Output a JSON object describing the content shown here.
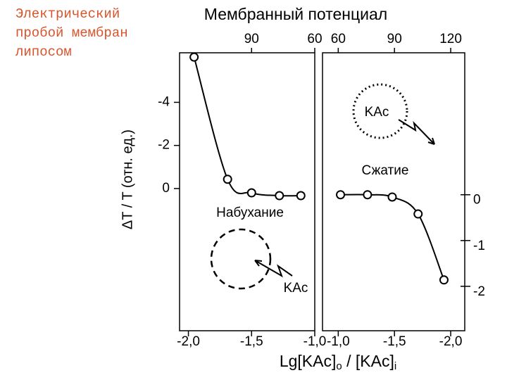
{
  "slide_title": [
    "Электрический",
    "пробой мембран",
    "липосом"
  ],
  "top_axis_label": "Мембранный потенциал",
  "y_label": "ΔT / T (отн. ед.)",
  "x_label": [
    "Lg[KAc]",
    "o",
    " / [KAc]",
    "i"
  ],
  "chart_data": [
    {
      "type": "line",
      "color": "#000000",
      "x": [
        -1.955,
        -1.69,
        -1.5,
        -1.28,
        -1.11
      ],
      "values": [
        -6.1,
        -0.43,
        0.2,
        0.33,
        0.33
      ],
      "xlim": [
        -2.07,
        -1.0
      ],
      "ylim": [
        6.6,
        -6.3
      ],
      "xticks": [
        {
          "value": -2.0,
          "label": "-2,0"
        },
        {
          "value": -1.5,
          "label": "-1,5"
        },
        {
          "value": -1.0,
          "label": "-1,0"
        }
      ],
      "x2ticks": [
        {
          "value": -1.5,
          "label": "90"
        },
        {
          "value": -1.0,
          "label": "60"
        }
      ],
      "yticks": [
        -4,
        -2,
        0
      ],
      "annotations": [
        "Набухание",
        "KAc"
      ]
    },
    {
      "type": "line",
      "color": "#000000",
      "x": [
        -1.02,
        -1.26,
        -1.48,
        -1.71,
        -1.94
      ],
      "values": [
        0,
        0,
        -0.05,
        -0.42,
        -1.86
      ],
      "xlim": [
        -0.86,
        -2.125
      ],
      "ylim": [
        -2.97,
        3.1
      ],
      "xticks": [
        {
          "value": -1.0,
          "label": "-1,0"
        },
        {
          "value": -1.5,
          "label": "-1,5"
        },
        {
          "value": -2.0,
          "label": "-2,0"
        }
      ],
      "x2ticks": [
        {
          "value": -1.0,
          "label": "60"
        },
        {
          "value": -1.5,
          "label": "90"
        },
        {
          "value": -2.0,
          "label": "120"
        }
      ],
      "yticks": [
        0,
        -1,
        -2
      ],
      "annotations": [
        "KAc",
        "Сжатие"
      ]
    }
  ]
}
